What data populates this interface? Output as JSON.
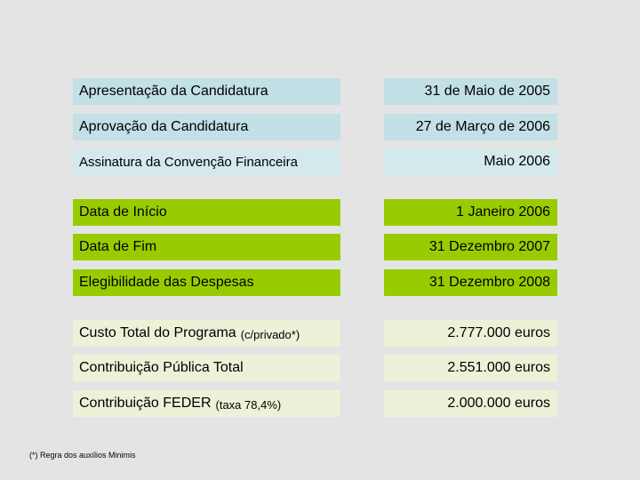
{
  "dates": [
    {
      "label": "Apresentação da Candidatura",
      "value": "31 de Maio de 2005"
    },
    {
      "label": "Aprovação da Candidatura",
      "value": "27 de Março de 2006"
    },
    {
      "label": "Assinatura da Convenção Financeira",
      "value": "Maio 2006"
    }
  ],
  "periods": [
    {
      "label": "Data de Início",
      "value": "1 Janeiro 2006"
    },
    {
      "label": "Data de Fim",
      "value": "31 Dezembro 2007"
    },
    {
      "label": "Elegibilidade das Despesas",
      "value": "31 Dezembro 2008"
    }
  ],
  "finance": [
    {
      "label": "Custo Total do Programa",
      "note": "(c/privado*)",
      "value": "2.777.000 euros"
    },
    {
      "label": "Contribuição Pública Total",
      "value": "2.551.000 euros"
    },
    {
      "label": "Contribuição FEDER",
      "note": "(taxa 78,4%)",
      "value": "2.000.000 euros"
    }
  ],
  "footnote": "(*)  Regra dos auxílios Minimis",
  "colors": {
    "background": "#e4e4e4",
    "dates_bg": "#c2e0e6",
    "dates_bg_light": "#d4e9ec",
    "periods_bg": "#99cc00",
    "finance_bg": "#eef0d8"
  }
}
